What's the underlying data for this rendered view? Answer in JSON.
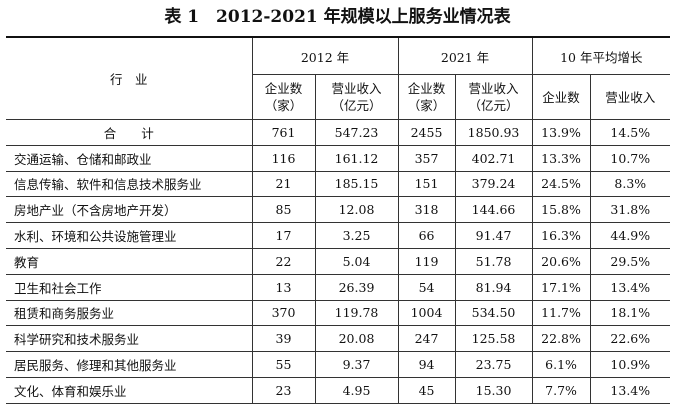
{
  "title": "表 1　2012-2021 年规模以上服务业情况表",
  "table": {
    "header": {
      "industry": "行　业",
      "groups": [
        "2012 年",
        "2021 年",
        "10 年平均增长"
      ],
      "subheads": [
        [
          "企业数",
          "（家）"
        ],
        [
          "营业收入",
          "（亿元）"
        ],
        [
          "企业数",
          "（家）"
        ],
        [
          "营业收入",
          "（亿元）"
        ],
        [
          "企业数"
        ],
        [
          "营业收入"
        ]
      ]
    },
    "rows": [
      [
        "合　　计",
        "761",
        "547.23",
        "2455",
        "1850.93",
        "13.9%",
        "14.5%"
      ],
      [
        "交通运输、仓储和邮政业",
        "116",
        "161.12",
        "357",
        "402.71",
        "13.3%",
        "10.7%"
      ],
      [
        "信息传输、软件和信息技术服务业",
        "21",
        "185.15",
        "151",
        "379.24",
        "24.5%",
        "8.3%"
      ],
      [
        "房地产业（不含房地产开发）",
        "85",
        "12.08",
        "318",
        "144.66",
        "15.8%",
        "31.8%"
      ],
      [
        "水利、环境和公共设施管理业",
        "17",
        "3.25",
        "66",
        "91.47",
        "16.3%",
        "44.9%"
      ],
      [
        "教育",
        "22",
        "5.04",
        "119",
        "51.78",
        "20.6%",
        "29.5%"
      ],
      [
        "卫生和社会工作",
        "13",
        "26.39",
        "54",
        "81.94",
        "17.1%",
        "13.4%"
      ],
      [
        "租赁和商务服务业",
        "370",
        "119.78",
        "1004",
        "534.50",
        "11.7%",
        "18.1%"
      ],
      [
        "科学研究和技术服务业",
        "39",
        "20.08",
        "247",
        "125.58",
        "22.8%",
        "22.6%"
      ],
      [
        "居民服务、修理和其他服务业",
        "55",
        "9.37",
        "94",
        "23.75",
        "6.1%",
        "10.9%"
      ],
      [
        "文化、体育和娱乐业",
        "23",
        "4.95",
        "45",
        "15.30",
        "7.7%",
        "13.4%"
      ]
    ]
  }
}
